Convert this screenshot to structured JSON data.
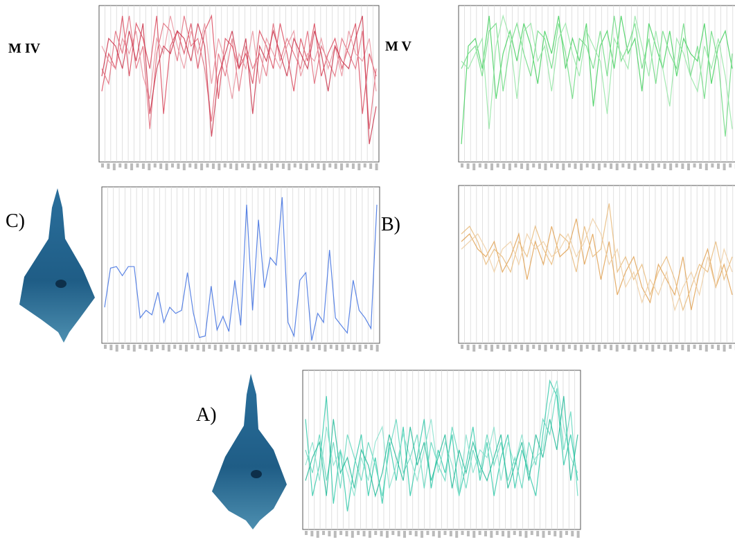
{
  "chart_data": [
    {
      "type": "line",
      "label": "M IV",
      "ylim": [
        0,
        100
      ],
      "grid": true,
      "series": [
        {
          "color": "#d9465a",
          "values": [
            45,
            70,
            60,
            95,
            55,
            90,
            80,
            60,
            95,
            30,
            75,
            85,
            70,
            90,
            60,
            85,
            95,
            40,
            80,
            75,
            60,
            70,
            50,
            85,
            75,
            60,
            90,
            70,
            45,
            80,
            65,
            90,
            55,
            70,
            80,
            60,
            75,
            90,
            30,
            70,
            55
          ]
        },
        {
          "color": "#e06a7a",
          "values": [
            60,
            50,
            85,
            70,
            95,
            60,
            75,
            20,
            70,
            90,
            85,
            65,
            95,
            75,
            80,
            60,
            25,
            70,
            55,
            80,
            45,
            75,
            60,
            70,
            55,
            90,
            65,
            80,
            70,
            60,
            85,
            50,
            75,
            65,
            55,
            80,
            70,
            60,
            85,
            20,
            60
          ]
        },
        {
          "color": "#e8909c",
          "values": [
            75,
            65,
            60,
            80,
            70,
            85,
            55,
            40,
            80,
            70,
            95,
            75,
            60,
            85,
            70,
            90,
            50,
            80,
            65,
            40,
            70,
            60,
            85,
            50,
            80,
            70,
            60,
            75,
            85,
            55,
            70,
            65,
            80,
            60,
            75,
            55,
            85,
            70,
            65,
            80,
            45
          ]
        },
        {
          "color": "#c93048",
          "values": [
            55,
            80,
            75,
            60,
            85,
            65,
            90,
            30,
            60,
            75,
            70,
            85,
            80,
            65,
            90,
            75,
            15,
            55,
            70,
            85,
            60,
            80,
            30,
            75,
            65,
            85,
            70,
            55,
            80,
            70,
            60,
            85,
            70,
            45,
            75,
            65,
            60,
            80,
            95,
            10,
            35
          ]
        }
      ]
    },
    {
      "type": "line",
      "label": "M V",
      "ylim": [
        0,
        100
      ],
      "grid": true,
      "series": [
        {
          "color": "#3fcf5a",
          "values": [
            10,
            75,
            80,
            60,
            95,
            40,
            70,
            85,
            65,
            90,
            75,
            50,
            85,
            70,
            95,
            60,
            80,
            65,
            90,
            35,
            75,
            85,
            60,
            95,
            70,
            80,
            45,
            90,
            75,
            60,
            85,
            55,
            80,
            70,
            65,
            90,
            50,
            75,
            85,
            60
          ]
        },
        {
          "color": "#6ad97f",
          "values": [
            60,
            70,
            75,
            55,
            85,
            90,
            45,
            75,
            90,
            70,
            55,
            85,
            80,
            60,
            90,
            70,
            40,
            80,
            75,
            60,
            85,
            55,
            95,
            65,
            75,
            90,
            60,
            80,
            50,
            85,
            70,
            60,
            90,
            55,
            75,
            40,
            85,
            65,
            15,
            70
          ]
        },
        {
          "color": "#93e5a3",
          "values": [
            65,
            60,
            70,
            80,
            20,
            75,
            95,
            80,
            40,
            85,
            90,
            65,
            75,
            45,
            80,
            90,
            70,
            55,
            85,
            75,
            65,
            30,
            80,
            70,
            60,
            95,
            75,
            55,
            85,
            60,
            35,
            80,
            70,
            55,
            45,
            75,
            60,
            80,
            55,
            20
          ]
        }
      ]
    },
    {
      "type": "line",
      "label": "C)",
      "ylim": [
        0,
        100
      ],
      "grid": true,
      "series": [
        {
          "color": "#3d6fe0",
          "values": [
            22,
            48,
            49,
            43,
            49,
            49,
            15,
            20,
            17,
            32,
            12,
            22,
            18,
            20,
            45,
            18,
            2,
            3,
            36,
            7,
            16,
            6,
            40,
            10,
            90,
            20,
            80,
            35,
            55,
            50,
            95,
            12,
            3,
            40,
            45,
            0,
            18,
            12,
            60,
            15,
            10,
            5,
            40,
            20,
            15,
            8,
            90
          ]
        }
      ]
    },
    {
      "type": "line",
      "label": "B)",
      "ylim": [
        0,
        100
      ],
      "grid": true,
      "series": [
        {
          "color": "#e0a050",
          "values": [
            65,
            70,
            60,
            55,
            65,
            45,
            55,
            70,
            40,
            65,
            50,
            75,
            55,
            60,
            80,
            50,
            70,
            40,
            65,
            30,
            45,
            55,
            35,
            25,
            50,
            40,
            30,
            55,
            20,
            45,
            60,
            35,
            50,
            30
          ]
        },
        {
          "color": "#e8b878",
          "values": [
            70,
            75,
            65,
            50,
            60,
            55,
            45,
            65,
            55,
            75,
            60,
            50,
            70,
            65,
            45,
            75,
            55,
            60,
            90,
            45,
            55,
            40,
            50,
            30,
            45,
            55,
            40,
            20,
            35,
            50,
            45,
            65,
            40,
            55
          ]
        },
        {
          "color": "#efcca0",
          "values": [
            60,
            65,
            70,
            60,
            45,
            60,
            65,
            50,
            70,
            60,
            65,
            55,
            60,
            70,
            55,
            65,
            80,
            70,
            50,
            60,
            35,
            45,
            25,
            40,
            30,
            45,
            20,
            35,
            45,
            30,
            55,
            35,
            60,
            45
          ]
        }
      ]
    },
    {
      "type": "line",
      "label": "A)",
      "ylim": [
        0,
        100
      ],
      "grid": true,
      "series": [
        {
          "color": "#2ec8a8",
          "values": [
            70,
            20,
            40,
            85,
            15,
            50,
            10,
            40,
            60,
            20,
            45,
            15,
            55,
            30,
            65,
            20,
            45,
            70,
            25,
            50,
            35,
            60,
            20,
            40,
            65,
            30,
            55,
            20,
            45,
            60,
            25,
            50,
            35,
            20,
            60,
            95,
            85,
            40,
            60,
            30
          ]
        },
        {
          "color": "#5ed6bc",
          "values": [
            50,
            35,
            60,
            30,
            55,
            25,
            60,
            45,
            30,
            55,
            40,
            20,
            50,
            70,
            35,
            45,
            60,
            25,
            55,
            40,
            30,
            65,
            45,
            25,
            50,
            35,
            60,
            40,
            55,
            30,
            45,
            25,
            55,
            40,
            70,
            60,
            90,
            50,
            75,
            20
          ]
        },
        {
          "color": "#86e0cc",
          "values": [
            40,
            55,
            30,
            65,
            40,
            50,
            35,
            20,
            45,
            30,
            55,
            65,
            25,
            40,
            60,
            45,
            30,
            50,
            70,
            35,
            55,
            40,
            20,
            60,
            35,
            50,
            45,
            65,
            30,
            55,
            40,
            60,
            35,
            45,
            50,
            80,
            95,
            65,
            45,
            35
          ]
        },
        {
          "color": "#1fb896",
          "values": [
            30,
            45,
            55,
            20,
            70,
            35,
            45,
            25,
            50,
            40,
            20,
            35,
            60,
            45,
            30,
            65,
            40,
            55,
            30,
            45,
            60,
            25,
            50,
            35,
            55,
            40,
            30,
            45,
            60,
            25,
            40,
            55,
            30,
            60,
            45,
            70,
            50,
            85,
            30,
            60
          ]
        }
      ]
    }
  ]
}
